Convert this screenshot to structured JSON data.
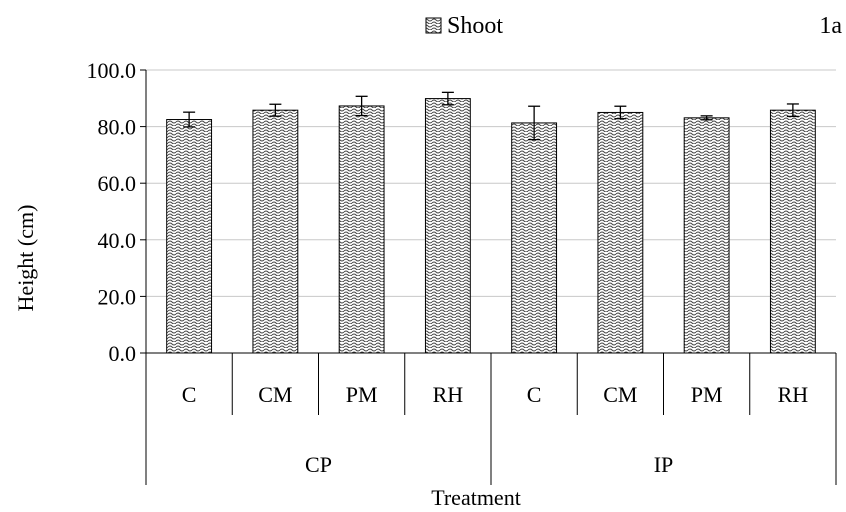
{
  "panel_label": "1a",
  "chart_data": {
    "type": "bar",
    "title": "",
    "xlabel": "Treatment",
    "ylabel": "Height (cm)",
    "ylim": [
      0,
      100
    ],
    "yticks": [
      "0.0",
      "20.0",
      "40.0",
      "60.0",
      "80.0",
      "100.0"
    ],
    "grid": true,
    "legend_position": "top-center",
    "groups": [
      {
        "label": "CP",
        "categories": [
          "C",
          "CM",
          "PM",
          "RH"
        ]
      },
      {
        "label": "IP",
        "categories": [
          "C",
          "CM",
          "PM",
          "RH"
        ]
      }
    ],
    "series": [
      {
        "name": "Shoot",
        "values": [
          82.5,
          85.8,
          87.3,
          89.9,
          81.3,
          85.0,
          83.1,
          85.8
        ],
        "errors": [
          2.6,
          2.1,
          3.4,
          2.2,
          5.9,
          2.2,
          0.7,
          2.2
        ]
      }
    ]
  }
}
